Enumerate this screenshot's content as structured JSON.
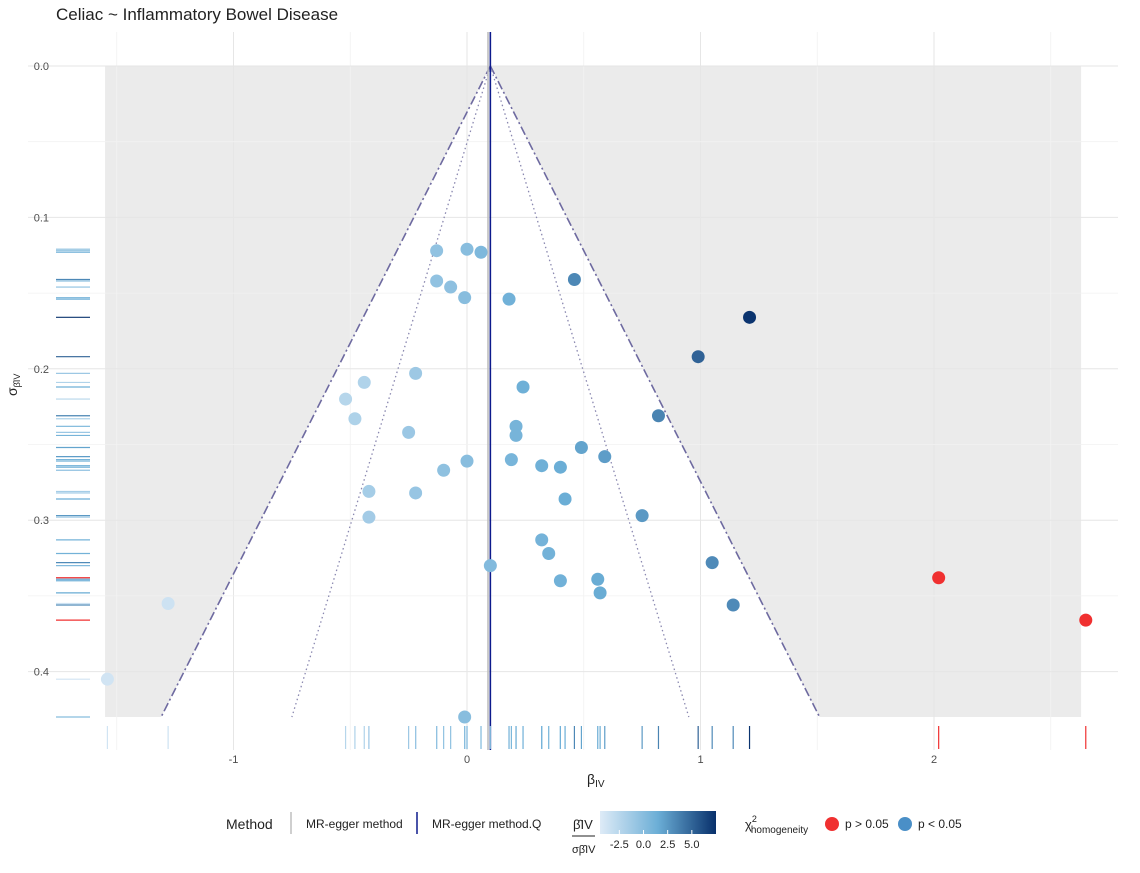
{
  "chart_data": {
    "type": "scatter",
    "title": "Celiac ~ Inflammatory Bowel Disease",
    "xlabel": "β",
    "xlabel_sub": "IV",
    "ylabel": "σ",
    "ylabel_sub": "β̂IV",
    "x_range": [
      -1.9,
      2.8
    ],
    "y_range": [
      -0.02,
      0.43
    ],
    "y_reversed": true,
    "grid": true,
    "x_ticks": [
      "-1",
      "0",
      "1",
      "2"
    ],
    "x_tick_values": [
      -1,
      0,
      1,
      2
    ],
    "y_ticks": [
      "0.0",
      "0.1",
      "0.2",
      "0.3",
      "0.4"
    ],
    "y_tick_values": [
      0,
      0.1,
      0.2,
      0.3,
      0.4
    ],
    "shaded_region": {
      "x_min": -1.55,
      "x_max": 2.63,
      "y_max": 0.43
    },
    "funnel_apex": {
      "x": 0.1,
      "y": 0.0
    },
    "funnel_outer": {
      "left_x_at_ymax": -1.31,
      "right_x_at_ymax": 1.51
    },
    "funnel_inner": {
      "left_x_at_ymax": -0.75,
      "right_x_at_ymax": 0.95
    },
    "estimate_lines": [
      {
        "name": "MR-egger method",
        "x": 0.09,
        "color": "#bfbfbf"
      },
      {
        "name": "MR-egger method.Q",
        "x": 0.1,
        "color": "#0d1a8c"
      }
    ],
    "points": [
      {
        "x": -0.13,
        "y": 0.122,
        "z": -0.5,
        "homog": "blue"
      },
      {
        "x": 0.0,
        "y": 0.121,
        "z": 0.0,
        "homog": "blue"
      },
      {
        "x": 0.06,
        "y": 0.123,
        "z": 0.5,
        "homog": "blue"
      },
      {
        "x": -0.13,
        "y": 0.142,
        "z": -0.5,
        "homog": "blue"
      },
      {
        "x": -0.07,
        "y": 0.146,
        "z": -0.3,
        "homog": "blue"
      },
      {
        "x": 0.46,
        "y": 0.141,
        "z": 3.3,
        "homog": "blue"
      },
      {
        "x": -0.01,
        "y": 0.153,
        "z": 0.0,
        "homog": "blue"
      },
      {
        "x": 0.18,
        "y": 0.154,
        "z": 1.2,
        "homog": "blue"
      },
      {
        "x": 1.21,
        "y": 0.166,
        "z": 7.3,
        "homog": "blue"
      },
      {
        "x": 0.99,
        "y": 0.192,
        "z": 5.1,
        "homog": "blue"
      },
      {
        "x": -0.22,
        "y": 0.203,
        "z": -1.1,
        "homog": "blue"
      },
      {
        "x": -0.44,
        "y": 0.209,
        "z": -2.1,
        "homog": "blue"
      },
      {
        "x": 0.24,
        "y": 0.212,
        "z": 1.3,
        "homog": "blue"
      },
      {
        "x": -0.52,
        "y": 0.22,
        "z": -2.4,
        "homog": "blue"
      },
      {
        "x": -0.48,
        "y": 0.233,
        "z": -2.0,
        "homog": "blue"
      },
      {
        "x": 0.82,
        "y": 0.231,
        "z": 3.5,
        "homog": "blue"
      },
      {
        "x": 0.21,
        "y": 0.238,
        "z": 0.9,
        "homog": "blue"
      },
      {
        "x": 0.21,
        "y": 0.244,
        "z": 0.9,
        "homog": "blue"
      },
      {
        "x": -0.25,
        "y": 0.242,
        "z": -1.0,
        "homog": "blue"
      },
      {
        "x": 0.49,
        "y": 0.252,
        "z": 2.0,
        "homog": "blue"
      },
      {
        "x": 0.59,
        "y": 0.258,
        "z": 2.3,
        "homog": "blue"
      },
      {
        "x": 0.19,
        "y": 0.26,
        "z": 0.8,
        "homog": "blue"
      },
      {
        "x": 0.0,
        "y": 0.261,
        "z": 0.0,
        "homog": "blue"
      },
      {
        "x": 0.32,
        "y": 0.264,
        "z": 1.3,
        "homog": "blue"
      },
      {
        "x": 0.4,
        "y": 0.265,
        "z": 1.5,
        "homog": "blue"
      },
      {
        "x": -0.1,
        "y": 0.267,
        "z": -0.4,
        "homog": "blue"
      },
      {
        "x": -0.42,
        "y": 0.281,
        "z": -1.5,
        "homog": "blue"
      },
      {
        "x": -0.22,
        "y": 0.282,
        "z": -0.8,
        "homog": "blue"
      },
      {
        "x": 0.42,
        "y": 0.286,
        "z": 1.5,
        "homog": "blue"
      },
      {
        "x": 0.75,
        "y": 0.297,
        "z": 2.5,
        "homog": "blue"
      },
      {
        "x": -0.42,
        "y": 0.298,
        "z": -1.4,
        "homog": "blue"
      },
      {
        "x": 0.32,
        "y": 0.313,
        "z": 1.0,
        "homog": "blue"
      },
      {
        "x": 0.35,
        "y": 0.322,
        "z": 1.1,
        "homog": "blue"
      },
      {
        "x": 1.05,
        "y": 0.328,
        "z": 3.2,
        "homog": "blue"
      },
      {
        "x": 0.1,
        "y": 0.33,
        "z": 0.3,
        "homog": "blue"
      },
      {
        "x": 0.4,
        "y": 0.34,
        "z": 1.2,
        "homog": "blue"
      },
      {
        "x": 0.56,
        "y": 0.339,
        "z": 1.6,
        "homog": "blue"
      },
      {
        "x": 2.02,
        "y": 0.338,
        "z": 6.0,
        "homog": "red"
      },
      {
        "x": 0.57,
        "y": 0.348,
        "z": 1.6,
        "homog": "blue"
      },
      {
        "x": 1.14,
        "y": 0.356,
        "z": 3.2,
        "homog": "blue"
      },
      {
        "x": -1.28,
        "y": 0.355,
        "z": -3.6,
        "homog": "blue"
      },
      {
        "x": 2.65,
        "y": 0.366,
        "z": 7.2,
        "homog": "red"
      },
      {
        "x": -1.54,
        "y": 0.405,
        "z": -3.8,
        "homog": "blue"
      },
      {
        "x": -0.01,
        "y": 0.43,
        "z": 0.0,
        "homog": "blue"
      }
    ],
    "legend": {
      "method_title": "Method",
      "method_items": [
        "MR-egger method",
        "MR-egger method.Q"
      ],
      "gradient_title_num": "β̂IV",
      "gradient_title_den": "σβ̂IV",
      "gradient_ticks": [
        "-2.5",
        "0.0",
        "2.5",
        "5.0"
      ],
      "gradient_tick_values": [
        -2.5,
        0,
        2.5,
        5
      ],
      "gradient_range": [
        -4.5,
        7.5
      ],
      "homog_title": "χ",
      "homog_title_sup": "2",
      "homog_title_sub": "homogeneity",
      "homog_items": [
        {
          "label": "p > 0.05",
          "key": "red"
        },
        {
          "label": "p < 0.05",
          "key": "blue"
        }
      ],
      "placement": "bottom"
    },
    "colors": {
      "red": "#f03030",
      "gradient_low": "#deebf7",
      "gradient_mid": "#6baed6",
      "gradient_high": "#08306b",
      "shade": "#ebebeb",
      "grid": "#e6e6e6",
      "outer_funnel": "#6e6aa0",
      "inner_funnel": "#8a88b0"
    }
  }
}
